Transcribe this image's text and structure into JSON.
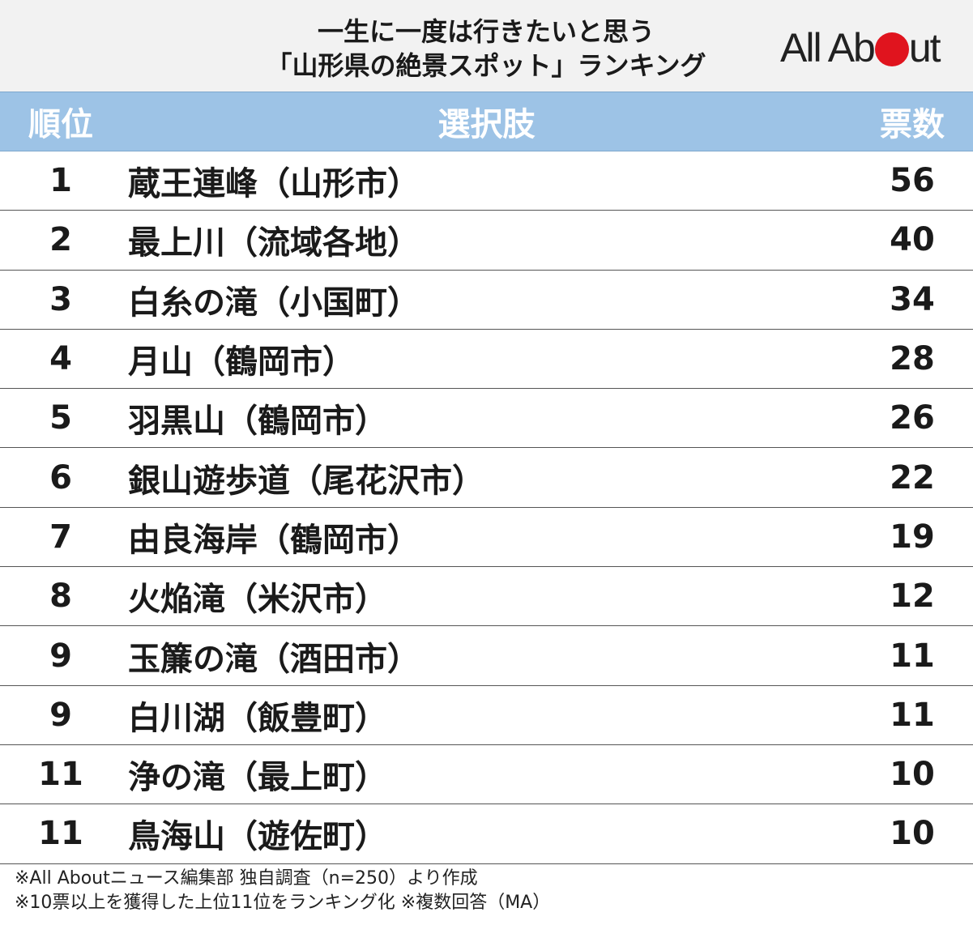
{
  "title": {
    "line1": "一生に一度は行きたいと思う",
    "line2": "「山形県の絶景スポット」ランキング"
  },
  "logo": {
    "text_before": "All Ab",
    "text_after": "ut",
    "dot_color": "#e0141e"
  },
  "table": {
    "headers": {
      "rank": "順位",
      "choice": "選択肢",
      "votes": "票数"
    },
    "header_bg": "#9dc3e6",
    "rows": [
      {
        "rank": "1",
        "choice": "蔵王連峰（山形市）",
        "votes": "56"
      },
      {
        "rank": "2",
        "choice": "最上川（流域各地）",
        "votes": "40"
      },
      {
        "rank": "3",
        "choice": "白糸の滝（小国町）",
        "votes": "34"
      },
      {
        "rank": "4",
        "choice": "月山（鶴岡市）",
        "votes": "28"
      },
      {
        "rank": "5",
        "choice": "羽黒山（鶴岡市）",
        "votes": "26"
      },
      {
        "rank": "6",
        "choice": "銀山遊歩道（尾花沢市）",
        "votes": "22"
      },
      {
        "rank": "7",
        "choice": "由良海岸（鶴岡市）",
        "votes": "19"
      },
      {
        "rank": "8",
        "choice": "火焔滝（米沢市）",
        "votes": "12"
      },
      {
        "rank": "9",
        "choice": "玉簾の滝（酒田市）",
        "votes": "11"
      },
      {
        "rank": "9",
        "choice": "白川湖（飯豊町）",
        "votes": "11"
      },
      {
        "rank": "11",
        "choice": "浄の滝（最上町）",
        "votes": "10"
      },
      {
        "rank": "11",
        "choice": "鳥海山（遊佐町）",
        "votes": "10"
      }
    ]
  },
  "notes": {
    "line1": "※All Aboutニュース編集部 独自調査（n=250）より作成",
    "line2": "※10票以上を獲得した上位11位をランキング化 ※複数回答（MA）"
  }
}
